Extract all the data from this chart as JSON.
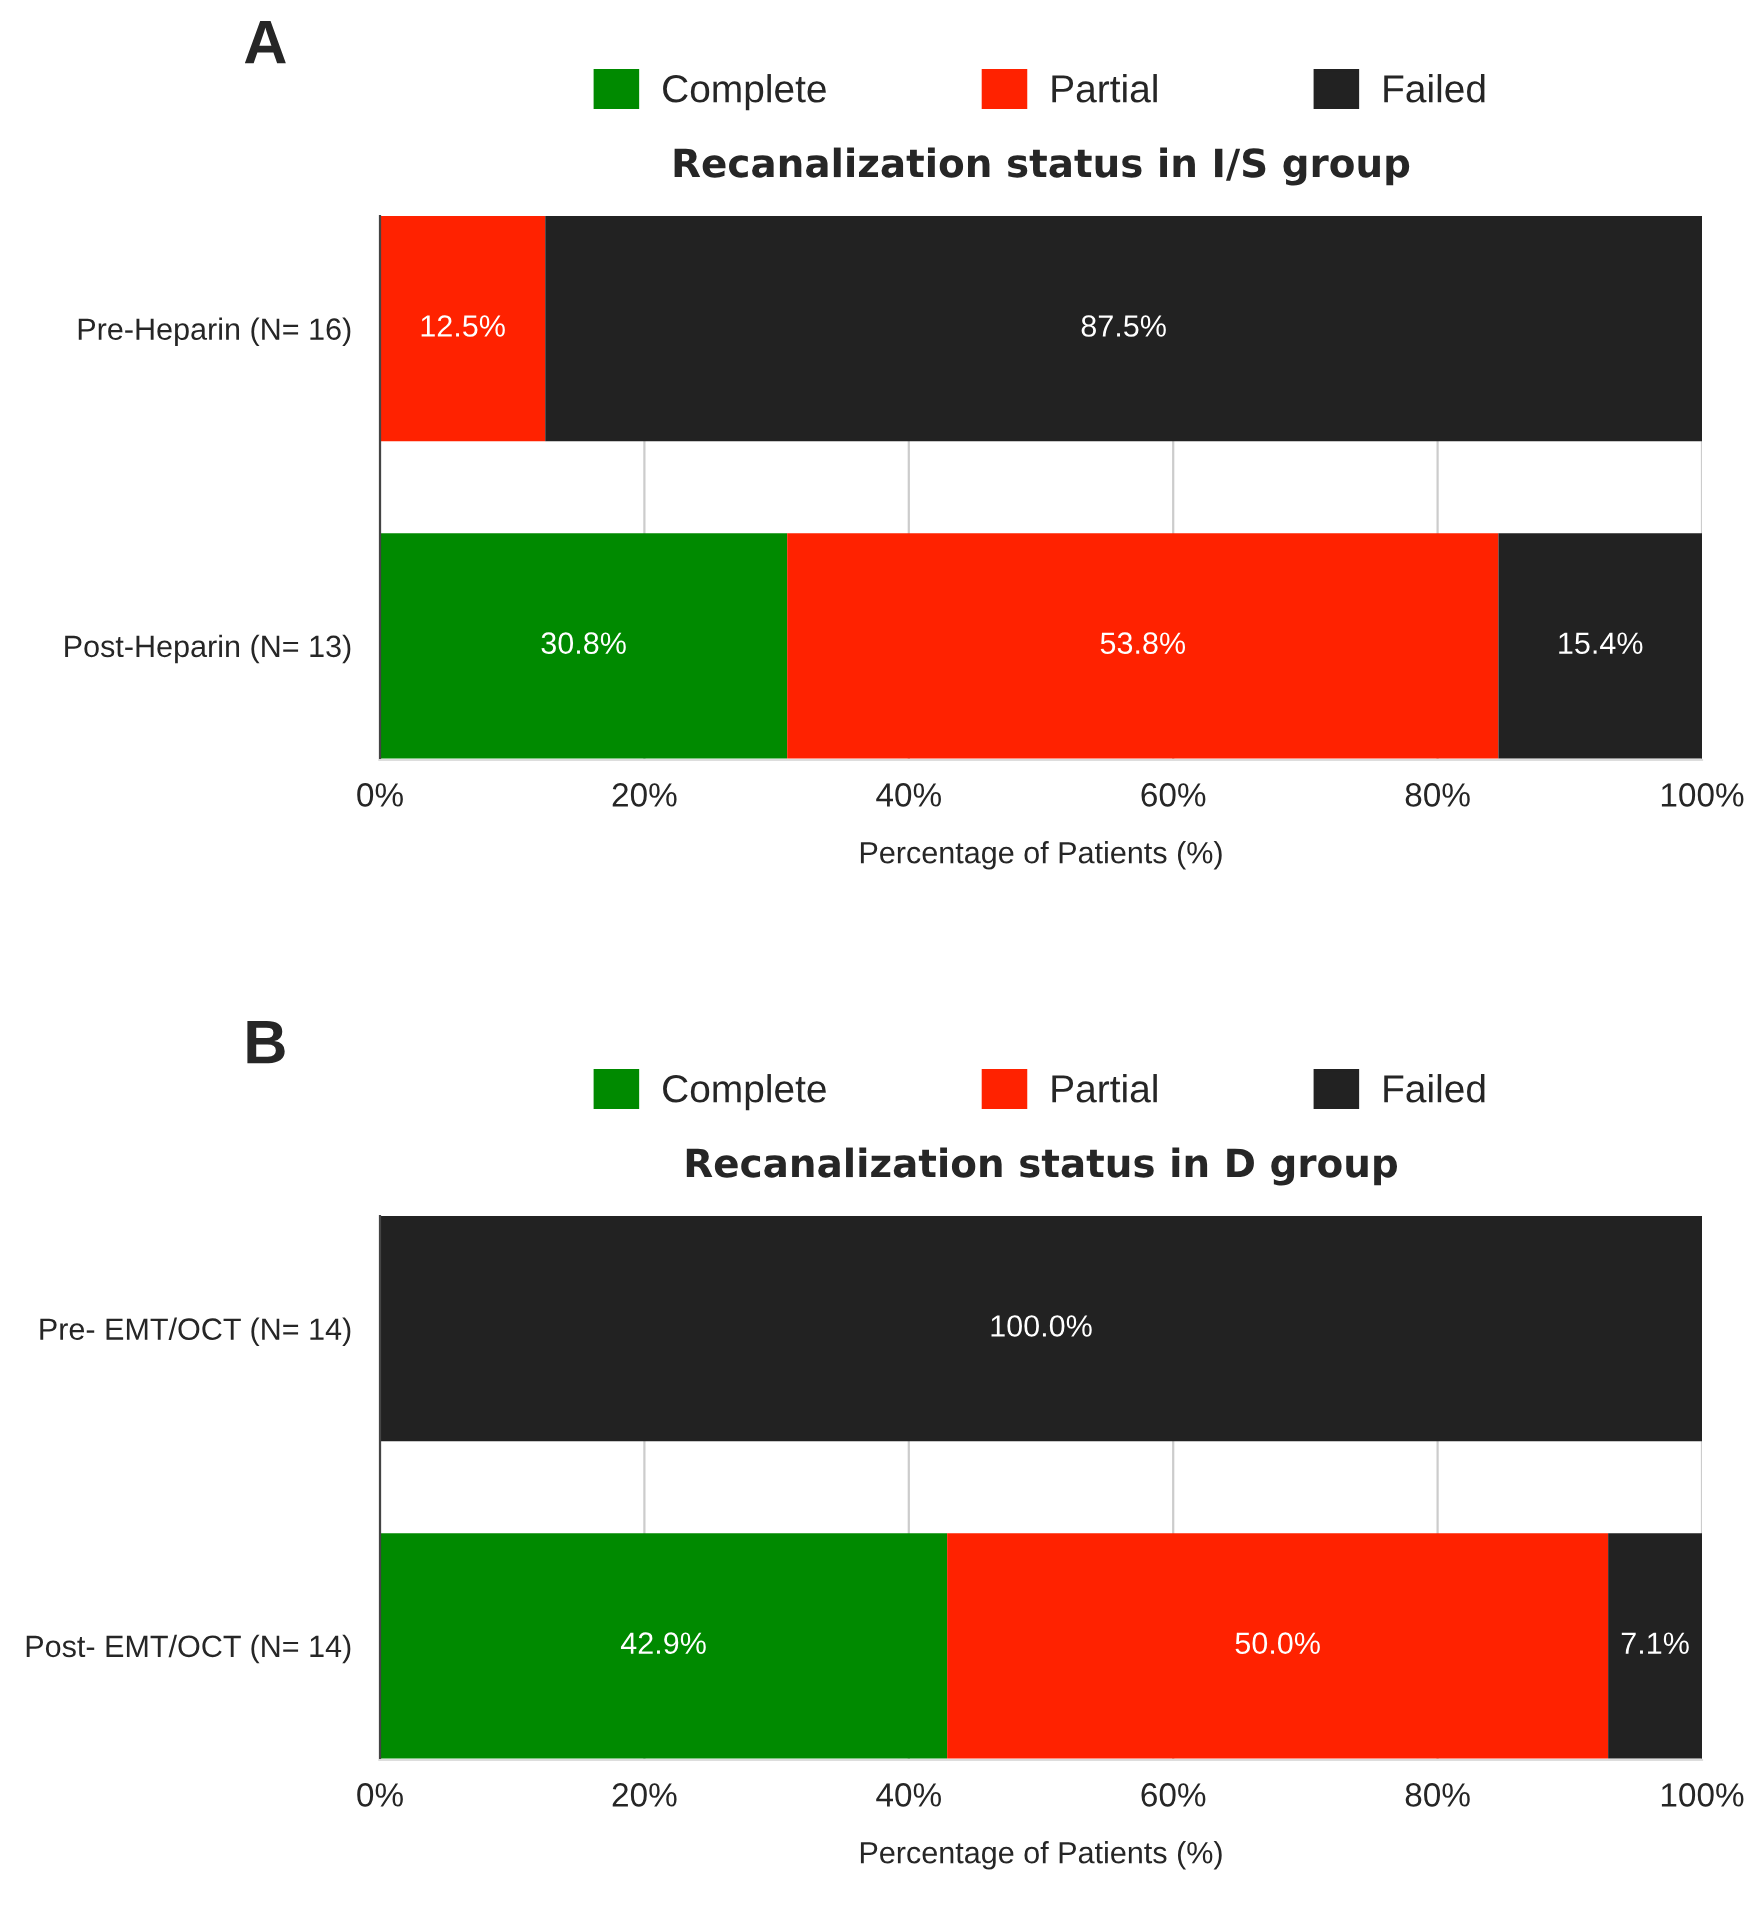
{
  "chart_data": [
    {
      "type": "bar",
      "orientation": "horizontal",
      "stacked": true,
      "title": "Recanalization status in I/S group",
      "xlabel": "Percentage of Patients (%)",
      "annotations": [
        "A"
      ],
      "categories": [
        "Pre-Heparin (N= 16)",
        "Post-Heparin (N= 13)"
      ],
      "series": [
        {
          "name": "Complete",
          "color": "#008a00",
          "values": [
            0,
            30.8
          ],
          "value_labels": [
            null,
            "30.8%"
          ]
        },
        {
          "name": "Partial",
          "color": "#ff2200",
          "values": [
            12.5,
            53.8
          ],
          "value_labels": [
            "12.5%",
            "53.8%"
          ]
        },
        {
          "name": "Failed",
          "color": "#222222",
          "values": [
            87.5,
            15.4
          ],
          "value_labels": [
            "87.5%",
            "15.4%"
          ]
        }
      ],
      "xlim": [
        0,
        100
      ],
      "xticks": [
        {
          "value": 0,
          "label": "0%"
        },
        {
          "value": 20,
          "label": "20%"
        },
        {
          "value": 40,
          "label": "40%"
        },
        {
          "value": 60,
          "label": "60%"
        },
        {
          "value": 80,
          "label": "80%"
        },
        {
          "value": 100,
          "label": "100%"
        }
      ],
      "grid": "x",
      "legend": "top"
    },
    {
      "type": "bar",
      "orientation": "horizontal",
      "stacked": true,
      "title": "Recanalization status in D group",
      "xlabel": "Percentage of Patients (%)",
      "annotations": [
        "B"
      ],
      "categories": [
        "Pre- EMT/OCT (N= 14)",
        "Post- EMT/OCT (N= 14)"
      ],
      "series": [
        {
          "name": "Complete",
          "color": "#008a00",
          "values": [
            0,
            42.9
          ],
          "value_labels": [
            null,
            "42.9%"
          ]
        },
        {
          "name": "Partial",
          "color": "#ff2200",
          "values": [
            0,
            50.0
          ],
          "value_labels": [
            null,
            "50.0%"
          ]
        },
        {
          "name": "Failed",
          "color": "#222222",
          "values": [
            100.0,
            7.1
          ],
          "value_labels": [
            "100.0%",
            "7.1%"
          ]
        }
      ],
      "xlim": [
        0,
        100
      ],
      "xticks": [
        {
          "value": 0,
          "label": "0%"
        },
        {
          "value": 20,
          "label": "20%"
        },
        {
          "value": 40,
          "label": "40%"
        },
        {
          "value": 60,
          "label": "60%"
        },
        {
          "value": 80,
          "label": "80%"
        },
        {
          "value": 100,
          "label": "100%"
        }
      ],
      "grid": "x",
      "legend": "top"
    }
  ]
}
